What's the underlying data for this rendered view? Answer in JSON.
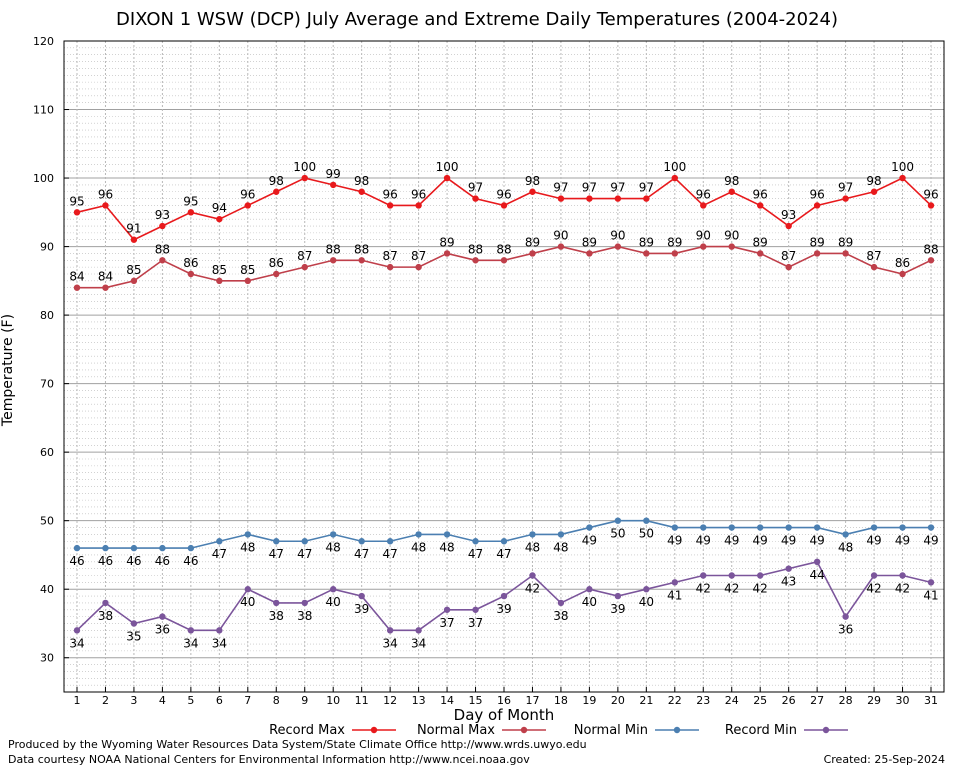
{
  "chart_data": {
    "type": "line",
    "title": "DIXON 1 WSW (DCP) July Average and Extreme Daily Temperatures (2004-2024)",
    "xlabel": "Day of Month",
    "ylabel": "Temperature (F)",
    "xlim": [
      1,
      31
    ],
    "ylim": [
      25,
      120
    ],
    "y_ticks": [
      30,
      40,
      50,
      60,
      70,
      80,
      90,
      100,
      110,
      120
    ],
    "x": [
      1,
      2,
      3,
      4,
      5,
      6,
      7,
      8,
      9,
      10,
      11,
      12,
      13,
      14,
      15,
      16,
      17,
      18,
      19,
      20,
      21,
      22,
      23,
      24,
      25,
      26,
      27,
      28,
      29,
      30,
      31
    ],
    "grid": true,
    "legend_position": "bottom",
    "series": [
      {
        "name": "Record Max",
        "color": "#e8191c",
        "labels_position": "above",
        "values": [
          95,
          96,
          91,
          93,
          95,
          94,
          96,
          98,
          100,
          99,
          98,
          96,
          96,
          100,
          97,
          96,
          98,
          97,
          97,
          97,
          97,
          100,
          96,
          98,
          96,
          93,
          96,
          97,
          98,
          100,
          96
        ]
      },
      {
        "name": "Normal Max",
        "color": "#bf3f4a",
        "labels_position": "above",
        "values": [
          84,
          84,
          85,
          88,
          86,
          85,
          85,
          86,
          87,
          88,
          88,
          87,
          87,
          89,
          88,
          88,
          89,
          90,
          89,
          90,
          89,
          89,
          90,
          90,
          89,
          87,
          89,
          89,
          87,
          86,
          88
        ]
      },
      {
        "name": "Normal Min",
        "color": "#4b7fb1",
        "labels_position": "below",
        "values": [
          46,
          46,
          46,
          46,
          46,
          47,
          48,
          47,
          47,
          48,
          47,
          47,
          48,
          48,
          47,
          47,
          48,
          48,
          49,
          50,
          50,
          49,
          49,
          49,
          49,
          49,
          49,
          48,
          49,
          49,
          49
        ]
      },
      {
        "name": "Record Min",
        "color": "#7b559b",
        "labels_position": "below",
        "values": [
          34,
          38,
          35,
          36,
          34,
          34,
          40,
          38,
          38,
          40,
          39,
          34,
          34,
          37,
          37,
          39,
          42,
          38,
          40,
          39,
          40,
          41,
          42,
          42,
          42,
          43,
          44,
          36,
          42,
          42,
          41
        ]
      }
    ]
  },
  "footer": {
    "produced_by": "Produced by the Wyoming Water Resources Data System/State Climate Office http://www.wrds.uwyo.edu",
    "data_courtesy": "Data courtesy NOAA National Centers for Environmental Information http://www.ncei.noaa.gov",
    "created": "Created:  25-Sep-2024"
  }
}
